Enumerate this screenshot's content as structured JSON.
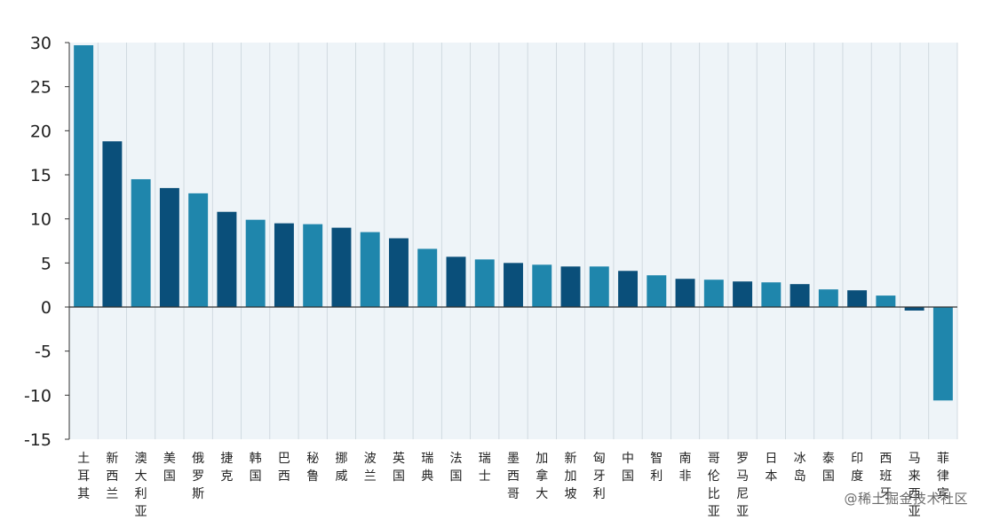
{
  "chart_data": {
    "type": "bar",
    "title": "",
    "xlabel": "",
    "ylabel": "",
    "ylim": [
      -15,
      30
    ],
    "yticks": [
      30,
      25,
      20,
      15,
      10,
      5,
      0,
      -5,
      -10,
      -15
    ],
    "grid": "vertical-category-dividers",
    "legend": "none",
    "categories": [
      "土耳其",
      "新西兰",
      "澳大利亚",
      "美国",
      "俄罗斯",
      "捷克",
      "韩国",
      "巴西",
      "秘鲁",
      "挪威",
      "波兰",
      "英国",
      "瑞典",
      "法国",
      "瑞士",
      "墨西哥",
      "加拿大",
      "新加坡",
      "匈牙利",
      "中国",
      "智利",
      "南非",
      "哥伦比亚",
      "罗马尼亚",
      "日本",
      "冰岛",
      "泰国",
      "印度",
      "西班牙",
      "马来西亚",
      "菲律宾"
    ],
    "values": [
      29.7,
      18.8,
      14.5,
      13.5,
      12.9,
      10.8,
      9.9,
      9.5,
      9.4,
      9.0,
      8.5,
      7.8,
      6.6,
      5.7,
      5.4,
      5.0,
      4.8,
      4.6,
      4.6,
      4.1,
      3.6,
      3.2,
      3.1,
      2.9,
      2.8,
      2.6,
      2.0,
      1.9,
      1.3,
      -0.4,
      -10.6
    ],
    "colors": [
      "#1f86ac",
      "#0a4f7a",
      "#1f86ac",
      "#0a4f7a",
      "#1f86ac",
      "#0a4f7a",
      "#1f86ac",
      "#0a4f7a",
      "#1f86ac",
      "#0a4f7a",
      "#1f86ac",
      "#0a4f7a",
      "#1f86ac",
      "#0a4f7a",
      "#1f86ac",
      "#0a4f7a",
      "#1f86ac",
      "#0a4f7a",
      "#1f86ac",
      "#0a4f7a",
      "#1f86ac",
      "#0a4f7a",
      "#1f86ac",
      "#0a4f7a",
      "#1f86ac",
      "#0a4f7a",
      "#1f86ac",
      "#0a4f7a",
      "#1f86ac",
      "#0a4f7a",
      "#1f86ac"
    ],
    "plot_background": "#eef4f8",
    "axis_color": "#333333",
    "grid_color": "#c9d3da"
  },
  "watermark": "@稀土掘金技术社区"
}
